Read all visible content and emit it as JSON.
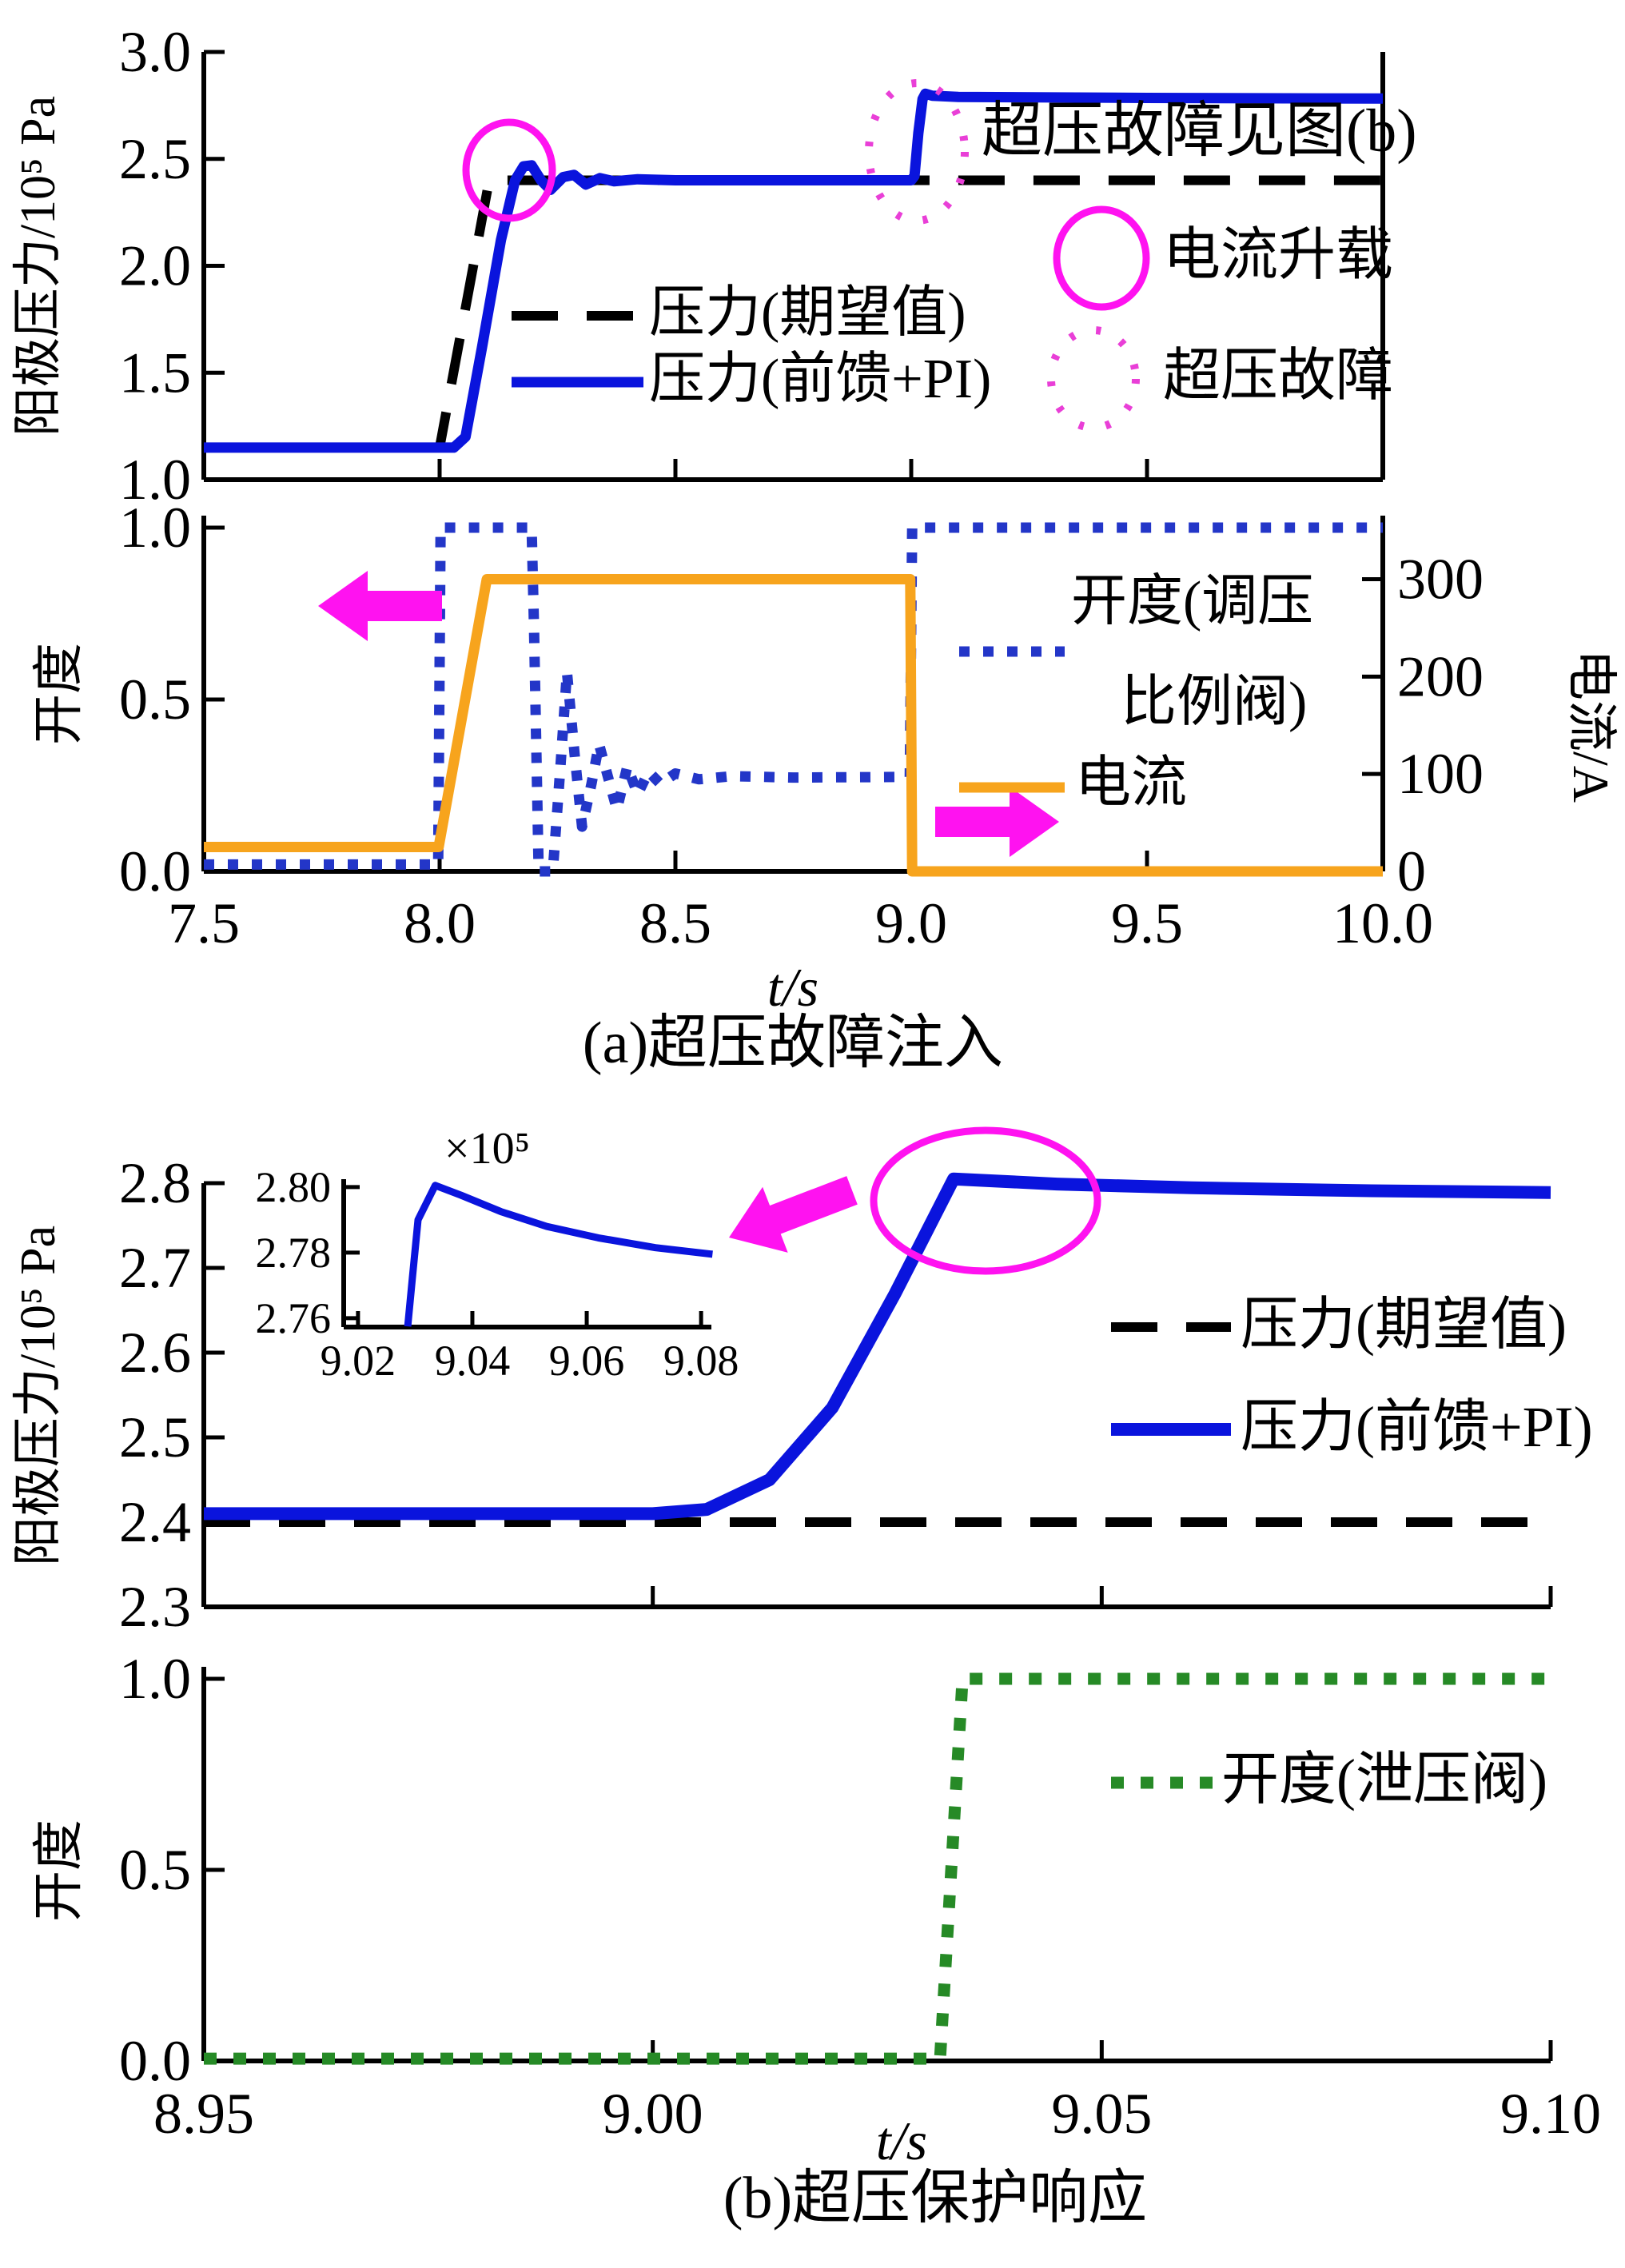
{
  "labels": {
    "see_b": "超压故障见图(b)",
    "current_load": "电流升载",
    "overpressure_fault": "超压故障",
    "p_expected": "压力(期望值)",
    "p_actual": "压力(前馈+PI)",
    "valve_line1": "开度(调压",
    "valve_line2": "比例阀)",
    "current": "电流",
    "relief_valve": "开度(泄压阀)",
    "x_axis": "t/s",
    "y_pressure": "阳极压力/10⁵ Pa",
    "y_opening": "开度",
    "y_current": "电流/A",
    "inset_scale": "×10⁵",
    "caption_a": "(a)超压故障注入",
    "caption_b": "(b)超压保护响应"
  },
  "colors": {
    "blue_solid": "#0a14dd",
    "blue_dotted": "#2336c8",
    "orange": "#f7a41d",
    "green": "#268a26",
    "magenta": "#ff12f0",
    "magenta_dotted": "#e93fd7",
    "black": "#000000"
  },
  "chart_data": [
    {
      "id": "a_pressure",
      "type": "line",
      "panel": "aTop",
      "title": "",
      "xlabel": "t/s",
      "ylabel": "阳极压力/10⁵ Pa",
      "xlim": [
        7.5,
        10.0
      ],
      "ylim": [
        1.0,
        3.0
      ],
      "grid": false,
      "yticks": [
        {
          "v": 3.0,
          "label": "3.0"
        },
        {
          "v": 2.5,
          "label": "2.5"
        },
        {
          "v": 2.0,
          "label": "2.0"
        },
        {
          "v": 1.5,
          "label": "1.5"
        },
        {
          "v": 1.0,
          "label": "1.0"
        }
      ],
      "xtick_marks": [
        8.0,
        8.5,
        9.0,
        9.5
      ],
      "xticks": [],
      "series": [
        {
          "name": "压力(期望值)",
          "key": "pressure-expected",
          "style": "dashed",
          "color": "#000000",
          "points": [
            [
              7.5,
              1.15
            ],
            [
              8.0,
              1.15
            ],
            [
              8.105,
              2.4
            ],
            [
              10.0,
              2.4
            ]
          ]
        },
        {
          "name": "压力(前馈+PI)",
          "key": "pressure-actual",
          "style": "solid",
          "color": "#0a14dd",
          "points": [
            [
              7.5,
              1.15
            ],
            [
              8.03,
              1.15
            ],
            [
              8.055,
              1.2
            ],
            [
              8.09,
              1.62
            ],
            [
              8.13,
              2.12
            ],
            [
              8.16,
              2.4
            ],
            [
              8.178,
              2.465
            ],
            [
              8.195,
              2.47
            ],
            [
              8.215,
              2.4
            ],
            [
              8.235,
              2.355
            ],
            [
              8.262,
              2.415
            ],
            [
              8.285,
              2.425
            ],
            [
              8.31,
              2.38
            ],
            [
              8.34,
              2.41
            ],
            [
              8.37,
              2.395
            ],
            [
              8.42,
              2.405
            ],
            [
              8.5,
              2.4
            ],
            [
              9.0,
              2.4
            ],
            [
              9.007,
              2.42
            ],
            [
              9.015,
              2.62
            ],
            [
              9.024,
              2.78
            ],
            [
              9.03,
              2.805
            ],
            [
              9.045,
              2.795
            ],
            [
              9.1,
              2.79
            ],
            [
              9.5,
              2.785
            ],
            [
              10.0,
              2.782
            ]
          ]
        }
      ],
      "annotations": [
        "电流升载 solid magenta ellipse at current ramp (t≈8.15)",
        "超压故障 dotted magenta ellipse at fault step (t≈9.0)",
        "text: 超压故障见图(b)"
      ]
    },
    {
      "id": "a_valve_current",
      "type": "line",
      "panel": "aBot",
      "xlabel": "t/s",
      "ylabel": "开度",
      "ylabel_right": "电流/A",
      "xlim": [
        7.5,
        10.0
      ],
      "ylim": [
        0.0,
        1.0349
      ],
      "ylim_right": [
        0,
        365.3
      ],
      "grid": false,
      "yticks": [
        {
          "v": 1.0,
          "label": "1.0"
        },
        {
          "v": 0.5,
          "label": "0.5"
        },
        {
          "v": 0.0,
          "label": "0.0"
        }
      ],
      "yticks_right": [
        {
          "v": 300,
          "label": "300"
        },
        {
          "v": 200,
          "label": "200"
        },
        {
          "v": 100,
          "label": "100"
        },
        {
          "v": 0,
          "label": "0"
        }
      ],
      "xtick_marks": [
        8.0,
        8.5,
        9.0,
        9.5
      ],
      "xticks": [
        {
          "v": 7.5,
          "label": "7.5"
        },
        {
          "v": 8.0,
          "label": "8.0"
        },
        {
          "v": 8.5,
          "label": "8.5"
        },
        {
          "v": 9.0,
          "label": "9.0"
        },
        {
          "v": 9.5,
          "label": "9.5"
        },
        {
          "v": 10.0,
          "label": "10.0"
        }
      ],
      "series": [
        {
          "name": "开度(调压比例阀)",
          "key": "regulating-valve-opening",
          "style": "dottedSq",
          "color": "#2336c8",
          "points": [
            [
              7.5,
              0.02
            ],
            [
              7.997,
              0.02
            ],
            [
              8.002,
              1.0
            ],
            [
              8.195,
              1.0
            ],
            [
              8.2,
              0.72
            ],
            [
              8.21,
              0.0
            ],
            [
              8.24,
              0.0
            ],
            [
              8.256,
              0.3
            ],
            [
              8.27,
              0.58
            ],
            [
              8.287,
              0.33
            ],
            [
              8.302,
              0.13
            ],
            [
              8.322,
              0.255
            ],
            [
              8.338,
              0.37
            ],
            [
              8.357,
              0.275
            ],
            [
              8.376,
              0.18
            ],
            [
              8.398,
              0.305
            ],
            [
              8.42,
              0.225
            ],
            [
              8.443,
              0.29
            ],
            [
              8.468,
              0.255
            ],
            [
              8.5,
              0.285
            ],
            [
              8.55,
              0.268
            ],
            [
              8.62,
              0.277
            ],
            [
              8.75,
              0.273
            ],
            [
              8.997,
              0.275
            ],
            [
              9.002,
              1.0
            ],
            [
              10.0,
              1.0
            ]
          ]
        },
        {
          "name": "电流",
          "key": "current",
          "style": "solid",
          "color": "#f7a41d",
          "axis": "right",
          "points": [
            [
              7.5,
              25
            ],
            [
              7.998,
              25
            ],
            [
              8.1,
              300
            ],
            [
              8.998,
              300
            ],
            [
              9.002,
              0
            ],
            [
              10.0,
              0
            ]
          ]
        }
      ]
    },
    {
      "id": "b_pressure",
      "type": "line",
      "panel": "bTop",
      "xlabel": "t/s",
      "ylabel": "阳极压力/10⁵ Pa",
      "xlim": [
        8.95,
        9.1
      ],
      "ylim": [
        2.3,
        2.8
      ],
      "grid": false,
      "yticks": [
        {
          "v": 2.8,
          "label": "2.8"
        },
        {
          "v": 2.7,
          "label": "2.7"
        },
        {
          "v": 2.6,
          "label": "2.6"
        },
        {
          "v": 2.5,
          "label": "2.5"
        },
        {
          "v": 2.4,
          "label": "2.4"
        },
        {
          "v": 2.3,
          "label": "2.3"
        }
      ],
      "xtick_marks": [
        9.0,
        9.05,
        9.1
      ],
      "xticks": [],
      "series": [
        {
          "name": "压力(期望值)",
          "key": "pressure-expected",
          "style": "dashed",
          "color": "#000000",
          "points": [
            [
              8.95,
              2.4
            ],
            [
              9.1,
              2.4
            ]
          ]
        },
        {
          "name": "压力(前馈+PI)",
          "key": "pressure-actual",
          "style": "solidThick",
          "color": "#0a14dd",
          "points": [
            [
              8.95,
              2.41
            ],
            [
              9.0,
              2.41
            ],
            [
              9.006,
              2.415
            ],
            [
              9.013,
              2.45
            ],
            [
              9.02,
              2.535
            ],
            [
              9.027,
              2.67
            ],
            [
              9.0335,
              2.805
            ],
            [
              9.045,
              2.799
            ],
            [
              9.06,
              2.7945
            ],
            [
              9.08,
              2.791
            ],
            [
              9.1,
              2.789
            ]
          ]
        }
      ],
      "annotations": [
        "magenta ellipse around overpressure peak (t≈9.034, p≈2.80×10⁵ Pa)",
        "magenta arrow pointing to zoom inset"
      ]
    },
    {
      "id": "b_inset",
      "type": "line",
      "panel": "inset",
      "title": "×10⁵",
      "xlim": [
        9.0175,
        9.0818
      ],
      "ylim": [
        2.7573,
        2.8024
      ],
      "grid": false,
      "yticks": [
        {
          "v": 2.8,
          "label": "2.80"
        },
        {
          "v": 2.78,
          "label": "2.78"
        },
        {
          "v": 2.76,
          "label": "2.76"
        }
      ],
      "xtick_marks": [
        9.02,
        9.04,
        9.06,
        9.08
      ],
      "xticks": [
        {
          "v": 9.02,
          "label": "9.02"
        },
        {
          "v": 9.04,
          "label": "9.04"
        },
        {
          "v": 9.06,
          "label": "9.06"
        },
        {
          "v": 9.08,
          "label": "9.08"
        }
      ],
      "series": [
        {
          "name": "压力(前馈+PI) 放大",
          "key": "pressure-actual-zoom",
          "style": "insetSolid",
          "color": "#0a14dd",
          "points": [
            [
              9.0287,
              2.7575
            ],
            [
              9.0295,
              2.772
            ],
            [
              9.0305,
              2.79
            ],
            [
              9.0335,
              2.8005
            ],
            [
              9.038,
              2.7975
            ],
            [
              9.045,
              2.7925
            ],
            [
              9.053,
              2.788
            ],
            [
              9.062,
              2.7845
            ],
            [
              9.072,
              2.7815
            ],
            [
              9.082,
              2.7795
            ]
          ]
        }
      ]
    },
    {
      "id": "b_relief_valve",
      "type": "line",
      "panel": "bBot",
      "xlabel": "t/s",
      "ylabel": "开度",
      "xlim": [
        8.95,
        9.1
      ],
      "ylim": [
        0.0,
        1.0314
      ],
      "grid": false,
      "yticks": [
        {
          "v": 1.0,
          "label": "1.0"
        },
        {
          "v": 0.5,
          "label": "0.5"
        },
        {
          "v": 0.0,
          "label": "0.0"
        }
      ],
      "xtick_marks": [
        9.0,
        9.05,
        9.1
      ],
      "xticks": [
        {
          "v": 8.95,
          "label": "8.95"
        },
        {
          "v": 9.0,
          "label": "9.00"
        },
        {
          "v": 9.05,
          "label": "9.05"
        },
        {
          "v": 9.1,
          "label": "9.10"
        }
      ],
      "series": [
        {
          "name": "开度(泄压阀)",
          "key": "relief-valve-opening",
          "style": "dottedSqBig",
          "color": "#268a26",
          "points": [
            [
              8.95,
              0.006
            ],
            [
              9.032,
              0.006
            ],
            [
              9.0345,
              1.0
            ],
            [
              9.1,
              1.0
            ]
          ]
        }
      ]
    }
  ]
}
